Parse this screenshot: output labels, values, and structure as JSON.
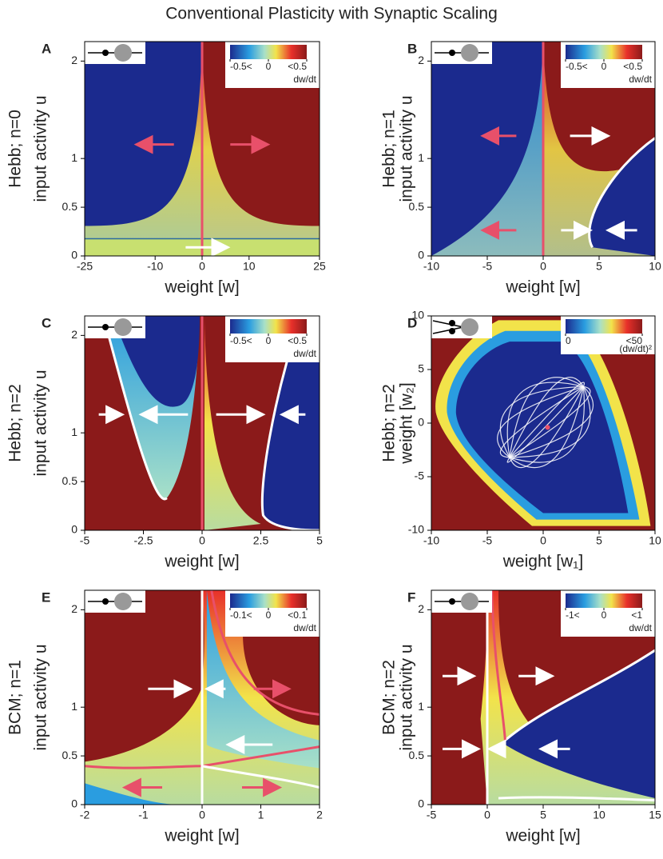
{
  "title": "Conventional Plasticity with Synaptic Scaling",
  "chart_data": [
    {
      "type": "heatmap",
      "label": "A",
      "row_label": "Hebb; n=0",
      "ylabel": "input activity u",
      "xlabel": "weight [w]",
      "xlim": [
        -25,
        25
      ],
      "ylim": [
        0,
        2.2
      ],
      "xticks": [
        -25,
        -10,
        0,
        10,
        25
      ],
      "yticks": [
        0,
        0.5,
        1,
        2
      ],
      "colorbar": {
        "clim": [
          -0.5,
          0.5
        ],
        "ticks": [
          {
            "value": -0.5,
            "label": "-0.5<"
          },
          0,
          {
            "value": 0.5,
            "label": "<0.5"
          }
        ],
        "label": "dw/dt"
      }
    },
    {
      "type": "heatmap",
      "label": "B",
      "row_label": "Hebb; n=1",
      "ylabel": "input activity u",
      "xlabel": "weight [w]",
      "xlim": [
        -10,
        10
      ],
      "ylim": [
        0,
        2.2
      ],
      "xticks": [
        -10,
        -5,
        0,
        5,
        10
      ],
      "yticks": [
        0,
        0.5,
        1,
        2
      ],
      "colorbar": {
        "clim": [
          -0.5,
          0.5
        ],
        "ticks": [
          {
            "value": -0.5,
            "label": "-0.5<"
          },
          0,
          {
            "value": 0.5,
            "label": "<0.5"
          }
        ],
        "label": "dw/dt"
      }
    },
    {
      "type": "heatmap",
      "label": "C",
      "row_label": "Hebb; n=2",
      "ylabel": "input activity u",
      "xlabel": "weight [w]",
      "xlim": [
        -5,
        5
      ],
      "ylim": [
        0,
        2.2
      ],
      "xticks": [
        -5,
        -2.5,
        0,
        2.5,
        5
      ],
      "yticks": [
        0,
        0.5,
        1,
        2
      ],
      "colorbar": {
        "clim": [
          -0.5,
          0.5
        ],
        "ticks": [
          {
            "value": -0.5,
            "label": "-0.5<"
          },
          0,
          {
            "value": 0.5,
            "label": "<0.5"
          }
        ],
        "label": "dw/dt"
      }
    },
    {
      "type": "streamplot",
      "label": "D",
      "row_label": "Hebb; n=2",
      "ylabel": "weight [w₂]",
      "xlabel": "weight [w₁]",
      "xlim": [
        -10,
        10
      ],
      "ylim": [
        -10,
        10
      ],
      "xticks": [
        -10,
        -5,
        0,
        5,
        10
      ],
      "yticks": [
        -10,
        -5,
        0,
        5,
        10
      ],
      "colorbar": {
        "clim": [
          0,
          50
        ],
        "ticks": [
          0,
          {
            "value": 50,
            "label": "<50"
          }
        ],
        "label": "(dw/dt)²"
      }
    },
    {
      "type": "heatmap",
      "label": "E",
      "row_label": "BCM; n=1",
      "ylabel": "input activity u",
      "xlabel": "weight [w]",
      "xlim": [
        -2,
        2
      ],
      "ylim": [
        0,
        2.2
      ],
      "xticks": [
        -2,
        -1,
        0,
        1,
        2
      ],
      "yticks": [
        0,
        0.5,
        1,
        2
      ],
      "colorbar": {
        "clim": [
          -0.1,
          0.1
        ],
        "ticks": [
          {
            "value": -0.1,
            "label": "-0.1<"
          },
          0,
          {
            "value": 0.1,
            "label": "<0.1"
          }
        ],
        "label": "dw/dt"
      }
    },
    {
      "type": "heatmap",
      "label": "F",
      "row_label": "BCM; n=2",
      "ylabel": "input activity u",
      "xlabel": "weight [w]",
      "xlim": [
        -5,
        15
      ],
      "ylim": [
        0,
        2.2
      ],
      "xticks": [
        -5,
        0,
        5,
        10,
        15
      ],
      "yticks": [
        0,
        0.5,
        1,
        2
      ],
      "colorbar": {
        "clim": [
          -1,
          1
        ],
        "ticks": [
          {
            "value": -1,
            "label": "-1<"
          },
          0,
          {
            "value": 1,
            "label": "<1"
          }
        ],
        "label": "dw/dt"
      }
    }
  ]
}
